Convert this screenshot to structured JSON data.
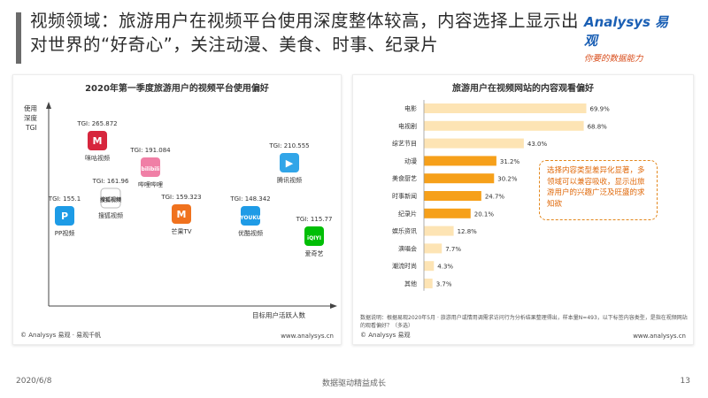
{
  "title": "视频领域：旅游用户在视频平台使用深度整体较高，内容选择上显示出对世界的“好奇心”，关注动漫、美食、时事、纪录片",
  "brand": {
    "name": "Analysys 易观",
    "slogan": "你要的数据能力",
    "color": "#1a5fb4"
  },
  "left_panel": {
    "title": "2020年第一季度旅游用户的视频平台使用偏好",
    "source": "© Analysys 易观 · 易观千帆",
    "url": "www.analysys.cn"
  },
  "right_panel": {
    "title": "旅游用户在视频网站的内容观看偏好",
    "source": "© Analysys 易观",
    "url": "www.analysys.cn",
    "note": "数据说明：根据易观2020年5月 · 旅游用户或情用调需求访问行为分析结果整理得出，样本量N=493，以下标签内容类型，是指在视频网站的观看偏好？（多选）",
    "callout": "选择内容类型差异化显著，多领域可以兼容吸收，显示出旅游用户的兴趣广泛及旺盛的求知欲"
  },
  "chart_data": [
    {
      "type": "scatter",
      "title": "2020年第一季度旅游用户的视频平台使用偏好",
      "ylabel": "使用深度TGI",
      "xlabel": "目标用户活跃人数",
      "points": [
        {
          "name": "咪咕视频",
          "tgi": "265.872",
          "icon_text": "M",
          "icon_color": "#d7263d"
        },
        {
          "name": "哔哩哔哩",
          "tgi": "191.084",
          "icon_text": "bilibili",
          "icon_color": "#f07fa6"
        },
        {
          "name": "腾讯视频",
          "tgi": "210.555",
          "icon_text": "▶",
          "icon_color": "#31a5e8"
        },
        {
          "name": "搜狐视频",
          "tgi": "161.96",
          "icon_text": "搜狐视频",
          "icon_color": "#ffffff"
        },
        {
          "name": "芒果TV",
          "tgi": "159.323",
          "icon_text": "M",
          "icon_color": "#f0721e"
        },
        {
          "name": "PP视频",
          "tgi": "155.1",
          "icon_text": "P",
          "icon_color": "#1d9be6"
        },
        {
          "name": "优酷视频",
          "tgi": "148.342",
          "icon_text": "YOUKU",
          "icon_color": "#1f9be6"
        },
        {
          "name": "爱奇艺",
          "tgi": "115.77",
          "icon_text": "iQIYI",
          "icon_color": "#00be06"
        }
      ]
    },
    {
      "type": "bar",
      "title": "旅游用户在视频网站的内容观看偏好",
      "categories": [
        "电影",
        "电视剧",
        "综艺节目",
        "动漫",
        "美食厨艺",
        "时事新闻",
        "纪录片",
        "娱乐资讯",
        "演唱会",
        "潮流时尚",
        "其他"
      ],
      "values": [
        69.9,
        68.8,
        43.0,
        31.2,
        30.2,
        24.7,
        20.1,
        12.8,
        7.7,
        4.3,
        3.7
      ],
      "value_labels": [
        "69.9%",
        "68.8%",
        "43.0%",
        "31.2%",
        "30.2%",
        "24.7%",
        "20.1%",
        "12.8%",
        "7.7%",
        "4.3%",
        "3.7%"
      ],
      "highlight_categories": [
        "动漫",
        "美食厨艺",
        "时事新闻",
        "纪录片"
      ],
      "colors": {
        "normal": "#fde4b4",
        "highlight": "#f6a01a"
      },
      "xlim": [
        0,
        80
      ]
    }
  ],
  "footer": {
    "date": "2020/6/8",
    "center": "数据驱动精益成长",
    "page": "13"
  }
}
